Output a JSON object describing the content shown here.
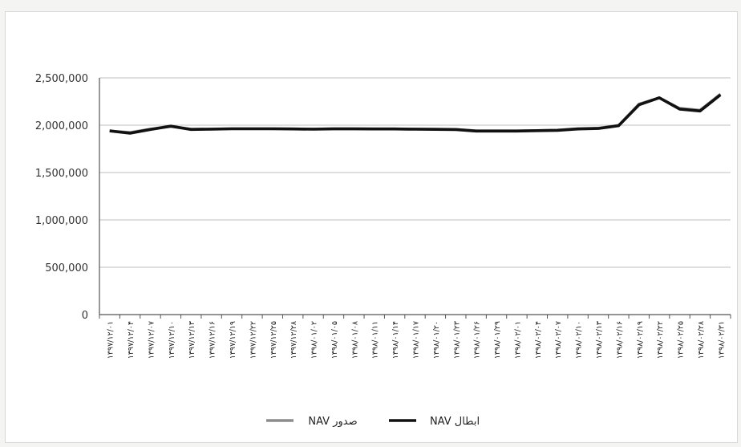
{
  "chart_data": {
    "type": "line",
    "title": "",
    "xlabel": "",
    "ylabel": "",
    "ylim": [
      0,
      2500000
    ],
    "grid": true,
    "legend_position": "bottom",
    "y_ticks": [
      "0",
      "500,000",
      "1,000,000",
      "1,500,000",
      "2,000,000",
      "2,500,000"
    ],
    "x": [
      "۱۳۹۷/۱۲/۰۱",
      "۱۳۹۷/۱۲/۰۴",
      "۱۳۹۷/۱۲/۰۷",
      "۱۳۹۷/۱۲/۱۰",
      "۱۳۹۷/۱۲/۱۳",
      "۱۳۹۷/۱۲/۱۶",
      "۱۳۹۷/۱۲/۱۹",
      "۱۳۹۷/۱۲/۲۲",
      "۱۳۹۷/۱۲/۲۵",
      "۱۳۹۷/۱۲/۲۸",
      "۱۳۹۸/۰۱/۰۲",
      "۱۳۹۸/۰۱/۰۵",
      "۱۳۹۸/۰۱/۰۸",
      "۱۳۹۸/۰۱/۱۱",
      "۱۳۹۸/۰۱/۱۴",
      "۱۳۹۸/۰۱/۱۷",
      "۱۳۹۸/۰۱/۲۰",
      "۱۳۹۸/۰۱/۲۳",
      "۱۳۹۸/۰۱/۲۶",
      "۱۳۹۸/۰۱/۲۹",
      "۱۳۹۸/۰۲/۰۱",
      "۱۳۹۸/۰۲/۰۴",
      "۱۳۹۸/۰۲/۰۷",
      "۱۳۹۸/۰۲/۱۰",
      "۱۳۹۸/۰۲/۱۳",
      "۱۳۹۸/۰۲/۱۶",
      "۱۳۹۸/۰۲/۱۹",
      "۱۳۹۸/۰۲/۲۲",
      "۱۳۹۸/۰۲/۲۵",
      "۱۳۹۸/۰۲/۲۸",
      "۱۳۹۸/۰۲/۳۱"
    ],
    "series": [
      {
        "name": "صدور NAV",
        "color": "#8c8c8c",
        "values": [
          1940000,
          1925000,
          1960000,
          1985000,
          1960000,
          1962000,
          1965000,
          1965000,
          1965000,
          1963000,
          1962000,
          1964000,
          1964000,
          1963000,
          1963000,
          1962000,
          1960000,
          1958000,
          1942000,
          1942000,
          1942000,
          1945000,
          1950000,
          1965000,
          1970000,
          2000000,
          2225000,
          2290000,
          2180000,
          2160000,
          2330000
        ]
      },
      {
        "name": "ابطال NAV",
        "color": "#111111",
        "values": [
          1940000,
          1915000,
          1955000,
          1990000,
          1955000,
          1958000,
          1962000,
          1962000,
          1962000,
          1960000,
          1958000,
          1961000,
          1961000,
          1960000,
          1960000,
          1958000,
          1956000,
          1954000,
          1938000,
          1938000,
          1938000,
          1942000,
          1946000,
          1960000,
          1965000,
          1995000,
          2215000,
          2290000,
          2170000,
          2150000,
          2320000
        ]
      }
    ]
  }
}
